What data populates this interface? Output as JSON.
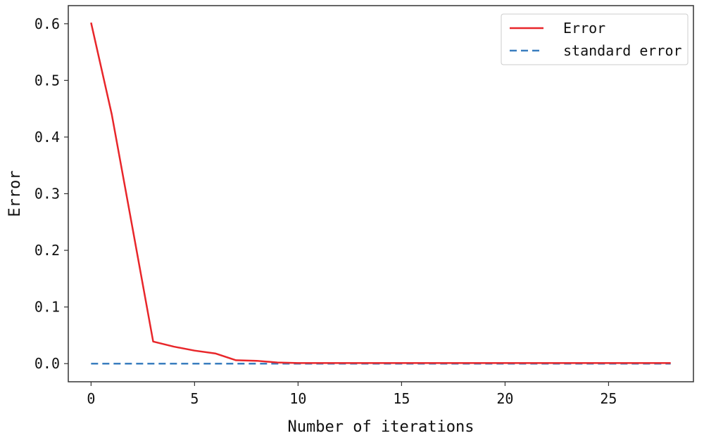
{
  "chart_data": {
    "type": "line",
    "title": "",
    "xlabel": "Number of iterations",
    "ylabel": "Error",
    "xlim": [
      -1.1,
      29.1
    ],
    "ylim": [
      -0.032,
      0.632
    ],
    "xticks": [
      0,
      5,
      10,
      15,
      20,
      25
    ],
    "xtick_labels": [
      "0",
      "5",
      "10",
      "15",
      "20",
      "25"
    ],
    "yticks": [
      0.0,
      0.1,
      0.2,
      0.3,
      0.4,
      0.5,
      0.6
    ],
    "ytick_labels": [
      "0.0",
      "0.1",
      "0.2",
      "0.3",
      "0.4",
      "0.5",
      "0.6"
    ],
    "grid": false,
    "legend_position": "top-right",
    "series": [
      {
        "name": "Error",
        "color": "#e8262a",
        "style": "solid",
        "x": [
          0,
          1,
          2,
          3,
          4,
          5,
          6,
          7,
          8,
          9,
          10,
          11,
          12,
          13,
          14,
          15,
          16,
          17,
          18,
          19,
          20,
          21,
          22,
          23,
          24,
          25,
          26,
          27,
          28
        ],
        "y": [
          0.602,
          0.44,
          0.24,
          0.039,
          0.03,
          0.023,
          0.018,
          0.006,
          0.005,
          0.002,
          0.001,
          0.001,
          0.001,
          0.001,
          0.001,
          0.001,
          0.001,
          0.001,
          0.001,
          0.001,
          0.001,
          0.001,
          0.001,
          0.001,
          0.001,
          0.001,
          0.001,
          0.001,
          0.001
        ]
      },
      {
        "name": "standard error",
        "color": "#3a7ebf",
        "style": "dashed",
        "x": [
          0,
          28
        ],
        "y": [
          0.0,
          0.0
        ]
      }
    ]
  }
}
